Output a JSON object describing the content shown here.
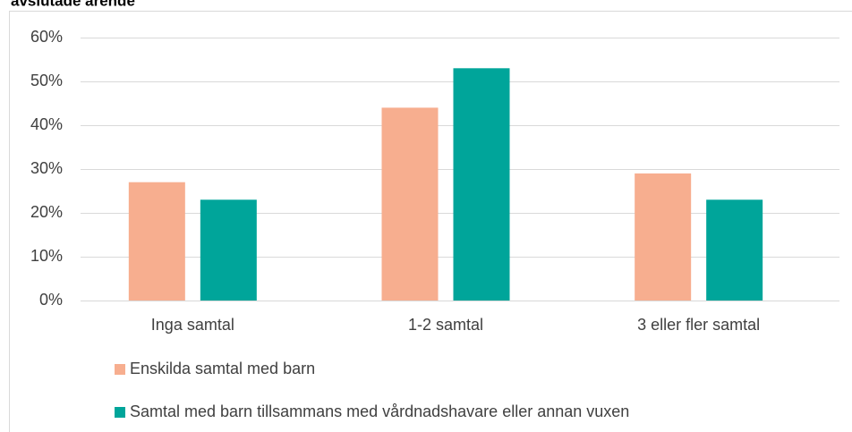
{
  "chart_data": {
    "type": "bar",
    "title": "avslutade ärende",
    "categories": [
      "Inga samtal",
      "1-2 samtal",
      "3 eller fler samtal"
    ],
    "series": [
      {
        "name": "Enskilda samtal med barn",
        "color": "#f7ae8f",
        "values": [
          27,
          44,
          29
        ]
      },
      {
        "name": "Samtal med barn tillsammans med vårdnadshavare eller annan vuxen",
        "color": "#00a59a",
        "values": [
          23,
          53,
          23
        ]
      }
    ],
    "ylim": [
      0,
      60
    ],
    "yticks": [
      {
        "value": 0,
        "label": "0%"
      },
      {
        "value": 10,
        "label": "10%"
      },
      {
        "value": 20,
        "label": "20%"
      },
      {
        "value": 30,
        "label": "30%"
      },
      {
        "value": 40,
        "label": "40%"
      },
      {
        "value": 50,
        "label": "50%"
      },
      {
        "value": 60,
        "label": "60%"
      }
    ],
    "grid": true,
    "legend": "bottom"
  }
}
